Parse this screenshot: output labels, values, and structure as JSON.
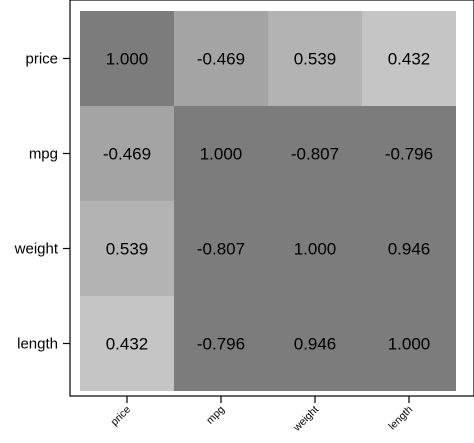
{
  "chart_data": {
    "type": "heatmap",
    "title": "",
    "xlabel": "",
    "ylabel": "",
    "row_labels": [
      "price",
      "mpg",
      "weight",
      "length"
    ],
    "col_labels": [
      "price",
      "mpg",
      "weight",
      "length"
    ],
    "values": [
      [
        1.0,
        -0.469,
        0.539,
        0.432
      ],
      [
        -0.469,
        1.0,
        -0.807,
        -0.796
      ],
      [
        0.539,
        -0.807,
        1.0,
        0.946
      ],
      [
        0.432,
        -0.796,
        0.946,
        1.0
      ]
    ],
    "value_labels": [
      [
        "1.000",
        "-0.469",
        "0.539",
        "0.432"
      ],
      [
        "-0.469",
        "1.000",
        "-0.807",
        "-0.796"
      ],
      [
        "0.539",
        "-0.807",
        "1.000",
        "0.946"
      ],
      [
        "0.432",
        "-0.796",
        "0.946",
        "1.000"
      ]
    ],
    "grid": false,
    "legend": "none",
    "colors": {
      "high": "#7c7c7c",
      "mid_high": "#a4a4a4",
      "mid_low": "#b3b3b3",
      "low": "#c5c5c5",
      "axis": "#000000",
      "background": "#ffffff"
    }
  }
}
